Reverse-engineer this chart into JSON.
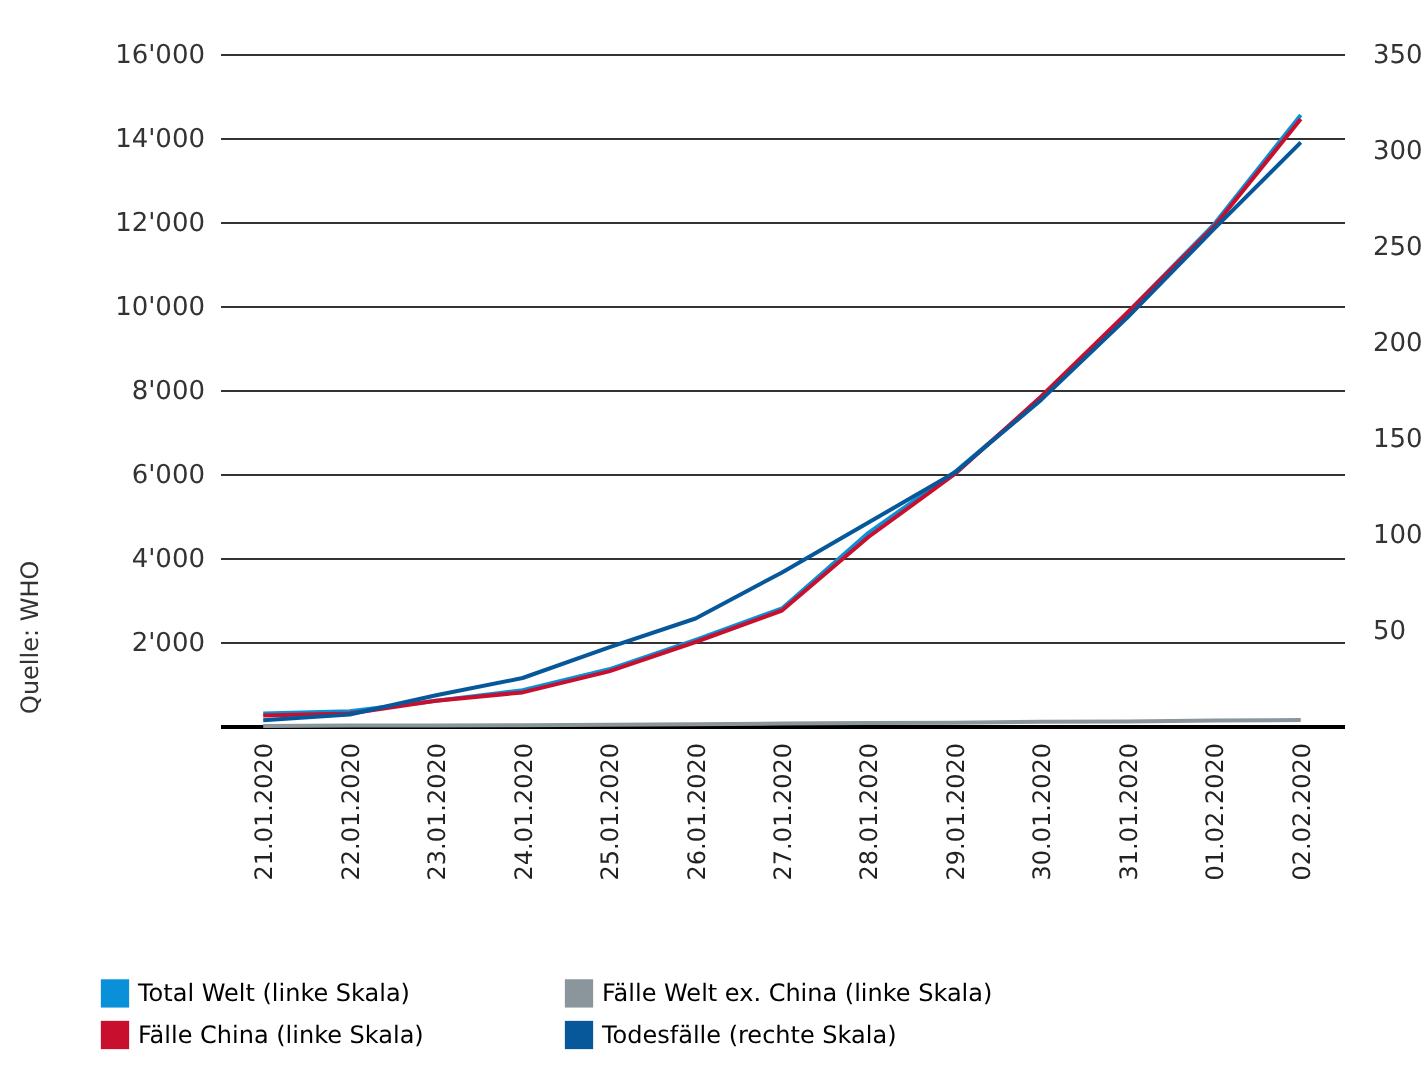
{
  "chart_data": {
    "type": "line",
    "categories": [
      "21.01.2020",
      "22.01.2020",
      "23.01.2020",
      "24.01.2020",
      "25.01.2020",
      "26.01.2020",
      "27.01.2020",
      "28.01.2020",
      "29.01.2020",
      "30.01.2020",
      "31.01.2020",
      "01.02.2020",
      "02.02.2020"
    ],
    "series": [
      {
        "name": "Total Welt (linke Skala)",
        "color": "#0a90d8",
        "values": [
          300,
          350,
          600,
          850,
          1350,
          2050,
          2800,
          4600,
          6050,
          7800,
          9850,
          11950,
          14550
        ]
      },
      {
        "name": "Fälle Welt ex. China (linke Skala)",
        "color": "#8a959c",
        "values": [
          0,
          10,
          10,
          20,
          30,
          40,
          60,
          70,
          80,
          100,
          110,
          130,
          140
        ]
      },
      {
        "name": "Fälle China (linke Skala)",
        "color": "#c8102e",
        "values": [
          250,
          300,
          600,
          800,
          1300,
          2000,
          2750,
          4500,
          6000,
          7850,
          9850,
          11900,
          14450
        ]
      },
      {
        "name": "Todesfälle (rechte Skala)",
        "color": "#07589a",
        "axis": "y2",
        "values": [
          3,
          6,
          16,
          25,
          41,
          56,
          80,
          106,
          132,
          170,
          213,
          259,
          304
        ]
      }
    ],
    "ylim": [
      0,
      16000
    ],
    "yticks": [
      {
        "value": 2000,
        "label": "2'000"
      },
      {
        "value": 4000,
        "label": "4'000"
      },
      {
        "value": 6000,
        "label": "6'000"
      },
      {
        "value": 8000,
        "label": "8'000"
      },
      {
        "value": 10000,
        "label": "10'000"
      },
      {
        "value": 12000,
        "label": "12'000"
      },
      {
        "value": 14000,
        "label": "14'000"
      },
      {
        "value": 16000,
        "label": "16'000"
      }
    ],
    "y2lim": [
      0,
      350
    ],
    "y2ticks": [
      50,
      100,
      150,
      200,
      250,
      300,
      350
    ],
    "grid": "y",
    "legend": "bottom left",
    "marker": "none",
    "line_style": "solid",
    "annotations": [
      "Quelle: WHO"
    ]
  }
}
